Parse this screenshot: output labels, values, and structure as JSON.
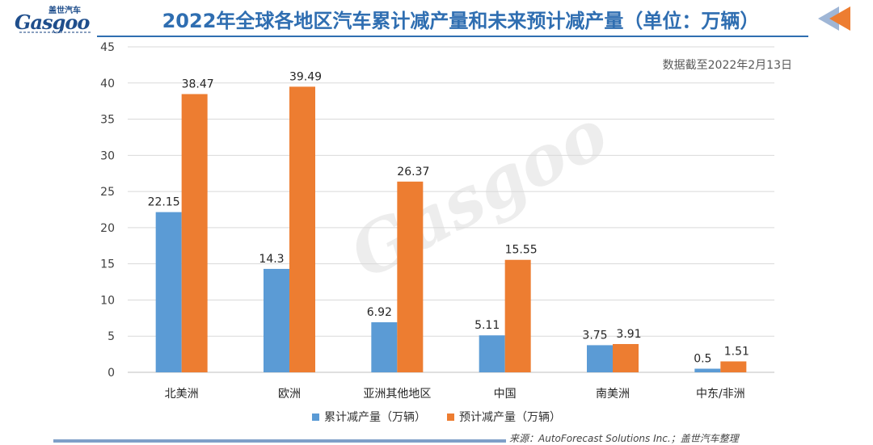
{
  "header": {
    "logo_cn": "盖世汽车",
    "logo_en": "Gasgoo",
    "title": "2022年全球各地区汽车累计减产量和未来预计减产量（单位：万辆）"
  },
  "note": "数据截至2022年2月13日",
  "watermark": "Gasgoo",
  "source": "来源：AutoForecast Solutions Inc.；盖世汽车整理",
  "colors": {
    "blue": "#5b9bd5",
    "orange": "#ed7d31",
    "title": "#2f6eb1"
  },
  "chart_data": {
    "type": "bar",
    "categories": [
      "北美洲",
      "欧洲",
      "亚洲其他地区",
      "中国",
      "南美洲",
      "中东/非洲"
    ],
    "series": [
      {
        "name": "累计减产量（万辆）",
        "values": [
          22.15,
          14.3,
          6.92,
          5.11,
          3.75,
          0.5
        ],
        "labels": [
          "22.15",
          "14.3",
          "6.92",
          "5.11",
          "3.75",
          "0.5"
        ]
      },
      {
        "name": "预计减产量（万辆）",
        "values": [
          38.47,
          39.49,
          26.37,
          15.55,
          3.91,
          1.51
        ],
        "labels": [
          "38.47",
          "39.49",
          "26.37",
          "15.55",
          "3.91",
          "1.51"
        ]
      }
    ],
    "yticks": [
      "0",
      "5",
      "10",
      "15",
      "20",
      "25",
      "30",
      "35",
      "40",
      "45"
    ],
    "ylim": [
      0,
      45
    ],
    "grid": true,
    "legend": "bottom"
  }
}
